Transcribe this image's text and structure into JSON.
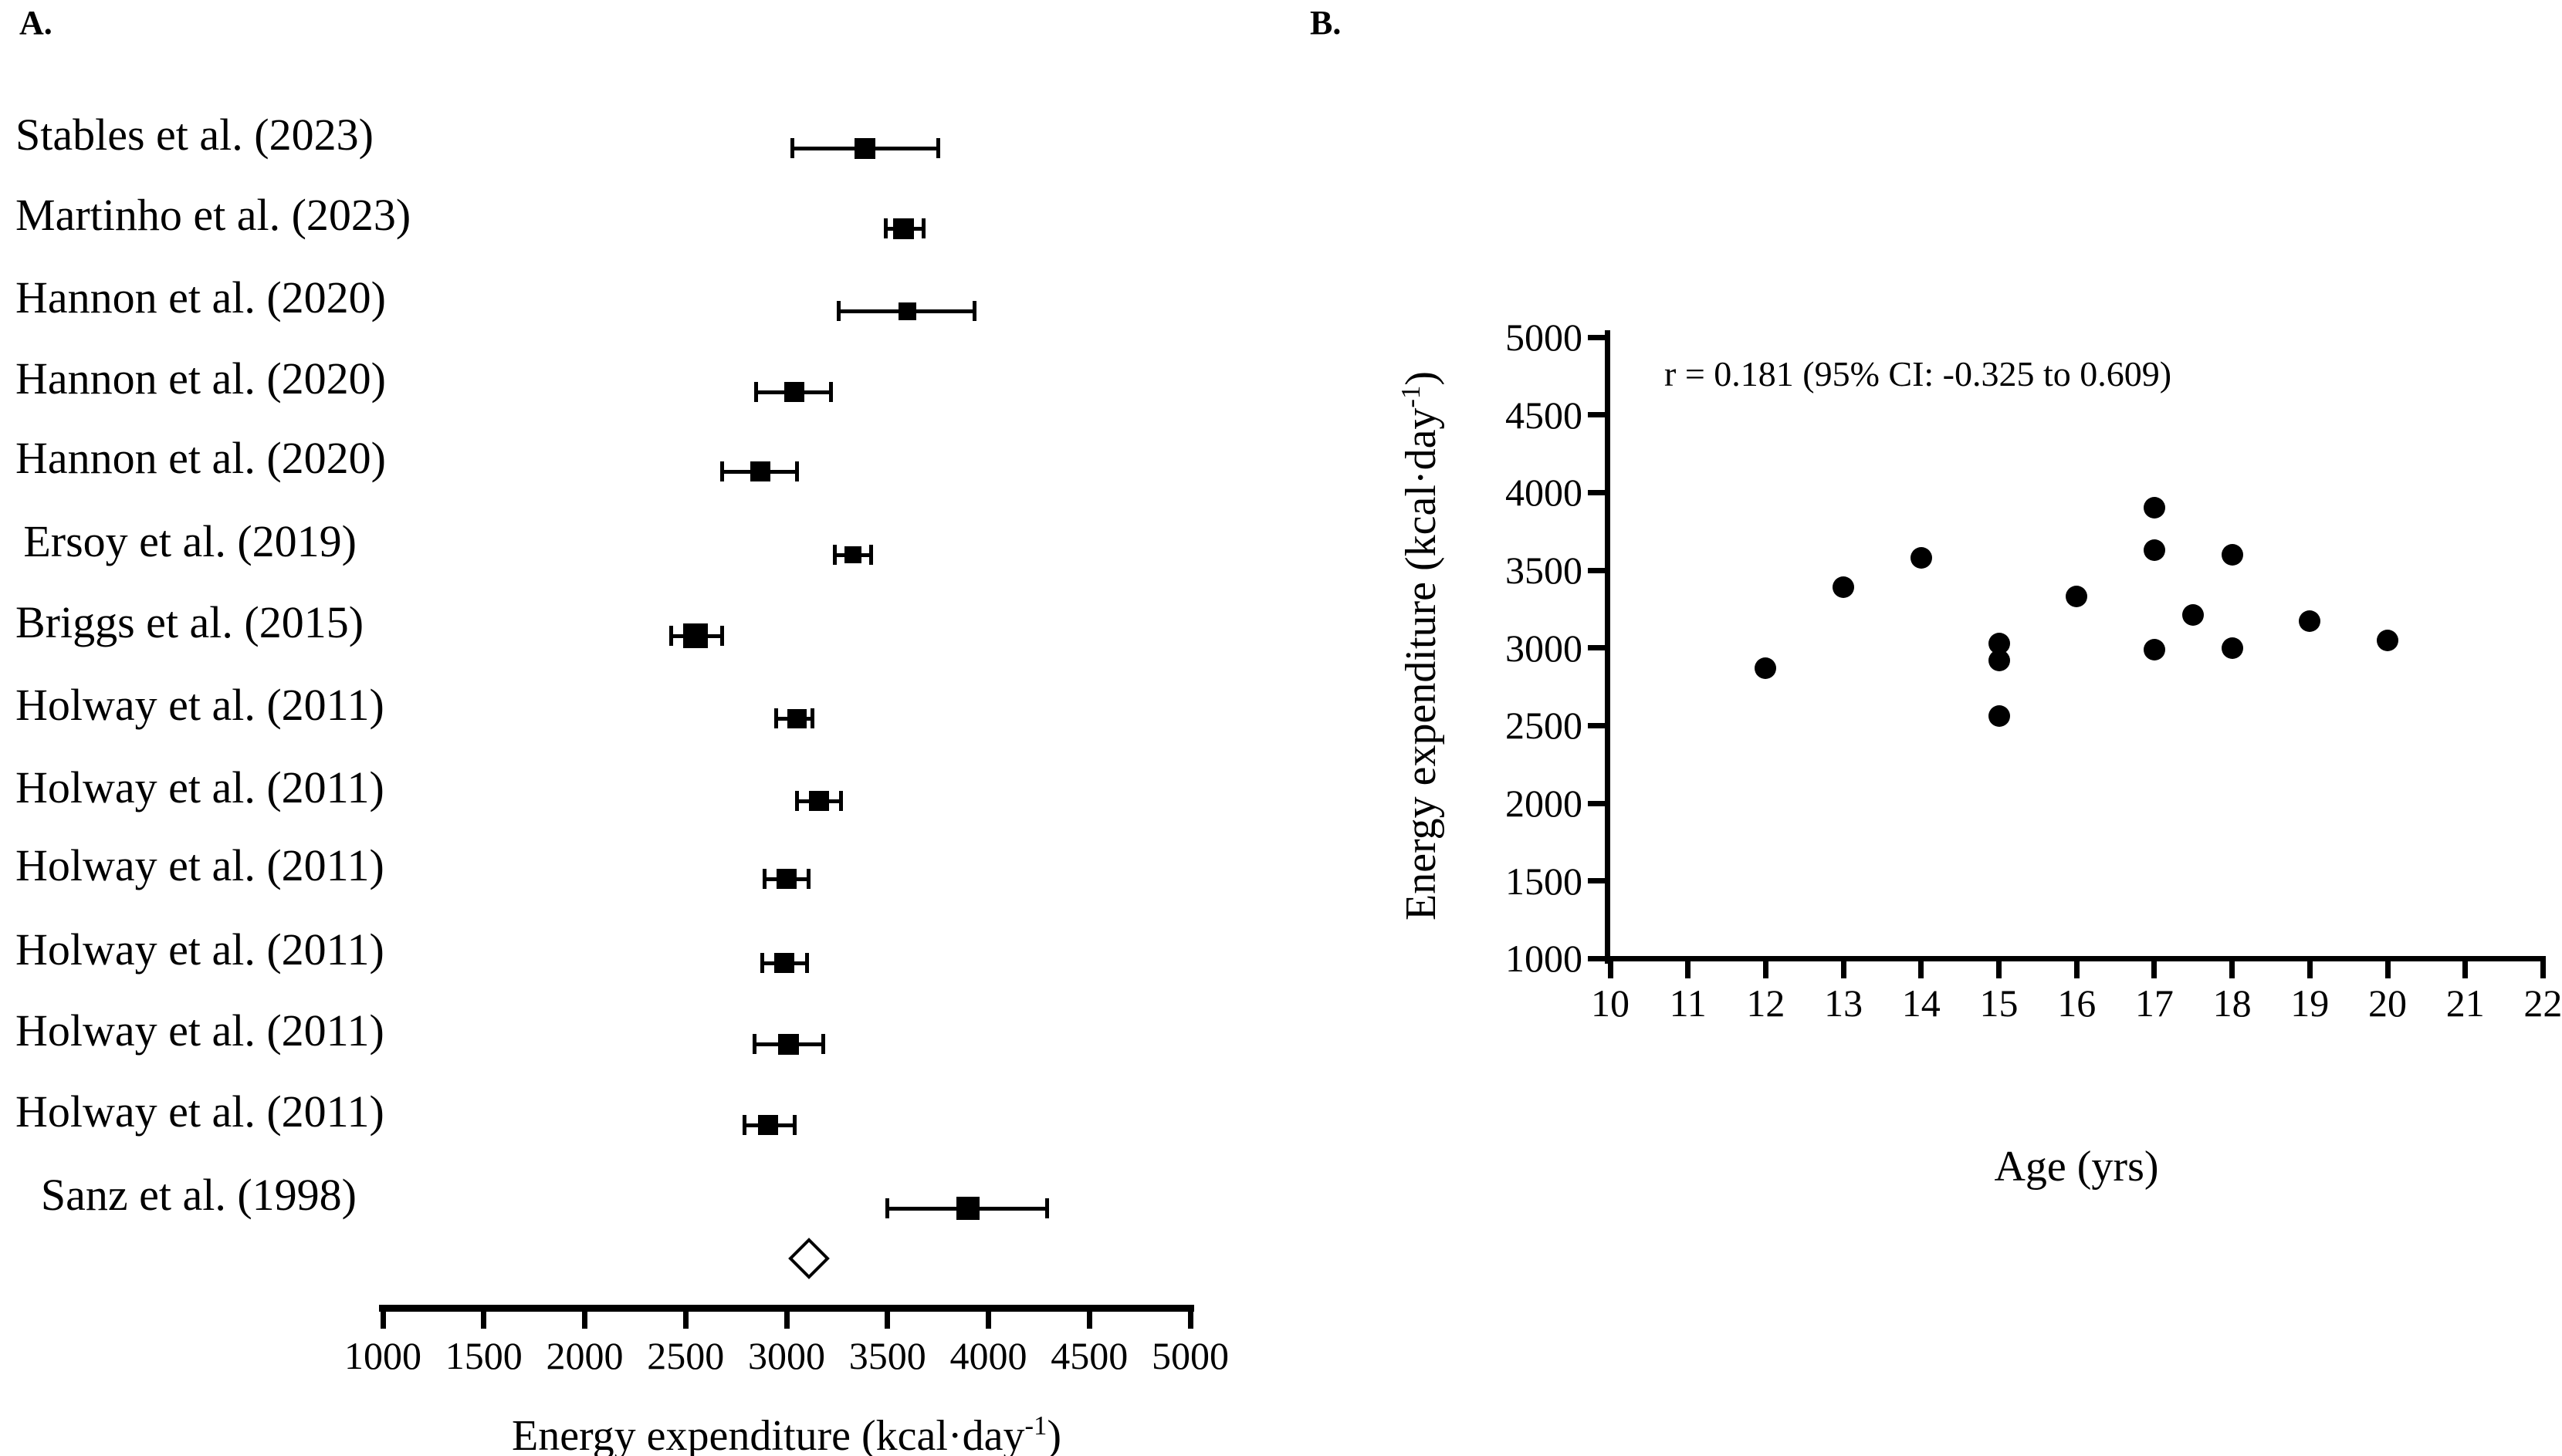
{
  "colors": {
    "ink": "#000000",
    "background": "#ffffff"
  },
  "panel_a": {
    "label": "A.",
    "x_axis_title_text": "Energy expenditure (kcal·day",
    "x_axis_title_sup": "-1",
    "x_axis_title_close": ")"
  },
  "panel_b": {
    "label": "B.",
    "annotation": "r  = 0.181 (95% CI: -0.325 to 0.609)",
    "x_axis_title": "Age (yrs)",
    "y_axis_title_text": "Energy expenditure (kcal·day",
    "y_axis_title_sup": "-1",
    "y_axis_title_close": ")"
  },
  "chart_data": [
    {
      "type": "forest",
      "title": "",
      "xlabel": "Energy expenditure (kcal·day-1)",
      "xlim": [
        1000,
        5000
      ],
      "x_ticks": [
        1000,
        1500,
        2000,
        2500,
        3000,
        3500,
        4000,
        4500,
        5000
      ],
      "grid": false,
      "studies": [
        {
          "label": "Stables et al. (2023)",
          "mean": 3390,
          "ci_low": 3030,
          "ci_high": 3750,
          "marker_px": 27
        },
        {
          "label": "Martinho et al. (2023)",
          "mean": 3580,
          "ci_low": 3490,
          "ci_high": 3680,
          "marker_px": 27
        },
        {
          "label": "Hannon et al. (2020)",
          "mean": 3600,
          "ci_low": 3260,
          "ci_high": 3930,
          "marker_px": 23
        },
        {
          "label": "Hannon et al. (2020)",
          "mean": 3040,
          "ci_low": 2850,
          "ci_high": 3220,
          "marker_px": 26
        },
        {
          "label": "Hannon et al. (2020)",
          "mean": 2870,
          "ci_low": 2680,
          "ci_high": 3050,
          "marker_px": 26
        },
        {
          "label": "Ersoy et al. (2019)",
          "mean": 3330,
          "ci_low": 3240,
          "ci_high": 3420,
          "marker_px": 22
        },
        {
          "label": "Briggs et al. (2015)",
          "mean": 2550,
          "ci_low": 2430,
          "ci_high": 2680,
          "marker_px": 32
        },
        {
          "label": "Holway et al. (2011)",
          "mean": 3050,
          "ci_low": 2950,
          "ci_high": 3130,
          "marker_px": 25
        },
        {
          "label": "Holway et al. (2011)",
          "mean": 3160,
          "ci_low": 3050,
          "ci_high": 3270,
          "marker_px": 26
        },
        {
          "label": "Holway et al. (2011)",
          "mean": 3000,
          "ci_low": 2890,
          "ci_high": 3110,
          "marker_px": 26
        },
        {
          "label": "Holway et al. (2011)",
          "mean": 2990,
          "ci_low": 2880,
          "ci_high": 3100,
          "marker_px": 26
        },
        {
          "label": "Holway et al. (2011)",
          "mean": 3010,
          "ci_low": 2840,
          "ci_high": 3180,
          "marker_px": 27
        },
        {
          "label": "Holway et al. (2011)",
          "mean": 2910,
          "ci_low": 2790,
          "ci_high": 3040,
          "marker_px": 26
        },
        {
          "label": "Sanz et al. (1998)",
          "mean": 3900,
          "ci_low": 3500,
          "ci_high": 4290,
          "marker_px": 30
        }
      ],
      "pooled": {
        "shape": "open-diamond",
        "mean": 3110,
        "ci_low": 3010,
        "ci_high": 3210
      }
    },
    {
      "type": "scatter",
      "title": "",
      "xlabel": "Age (yrs)",
      "ylabel": "Energy expenditure (kcal·day-1)",
      "xlim": [
        10,
        22
      ],
      "ylim": [
        1000,
        5000
      ],
      "x_ticks": [
        10,
        11,
        12,
        13,
        14,
        15,
        16,
        17,
        18,
        19,
        20,
        21,
        22
      ],
      "y_ticks": [
        1000,
        1500,
        2000,
        2500,
        3000,
        3500,
        4000,
        4500,
        5000
      ],
      "grid": false,
      "annotation": "r  = 0.181 (95% CI: -0.325 to 0.609)",
      "points": [
        {
          "x": 12,
          "y": 2870
        },
        {
          "x": 13,
          "y": 3390
        },
        {
          "x": 14,
          "y": 3580
        },
        {
          "x": 15,
          "y": 3030
        },
        {
          "x": 15,
          "y": 2920
        },
        {
          "x": 15,
          "y": 2560
        },
        {
          "x": 16,
          "y": 3330
        },
        {
          "x": 17,
          "y": 3900
        },
        {
          "x": 17,
          "y": 3630
        },
        {
          "x": 17,
          "y": 2990
        },
        {
          "x": 17.5,
          "y": 3210
        },
        {
          "x": 18,
          "y": 3600
        },
        {
          "x": 18,
          "y": 3000
        },
        {
          "x": 19,
          "y": 3170
        },
        {
          "x": 20,
          "y": 3050
        }
      ]
    }
  ]
}
